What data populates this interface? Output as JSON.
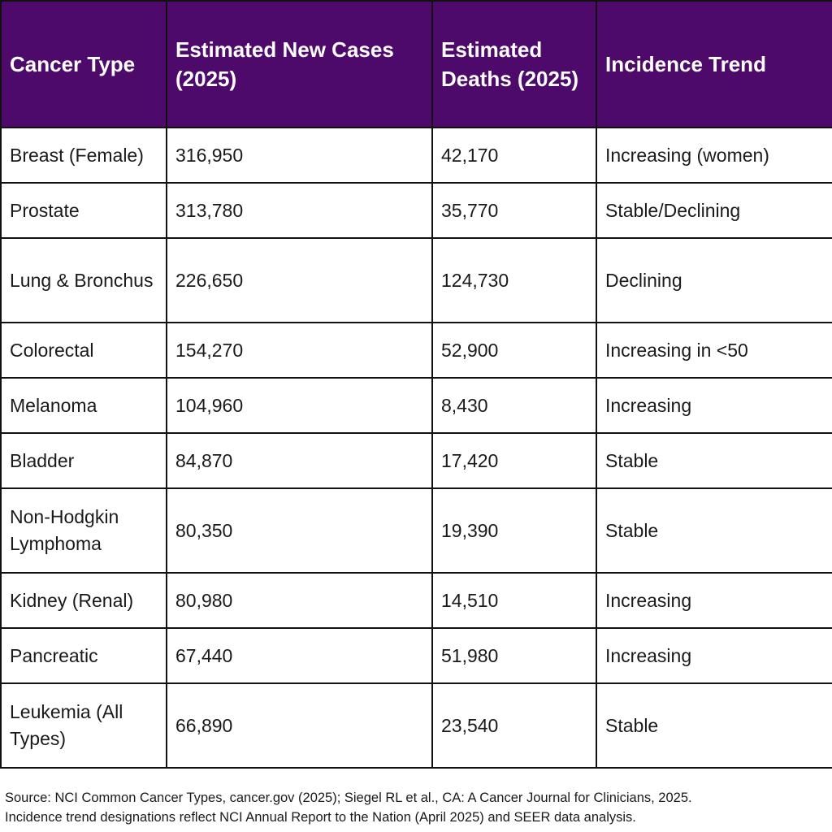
{
  "table": {
    "headers": [
      "Cancer Type",
      "Estimated New Cases (2025)",
      "Estimated Deaths (2025)",
      "Incidence Trend"
    ],
    "rows": [
      [
        "Breast (Female)",
        "316,950",
        "42,170",
        "Increasing (women)"
      ],
      [
        "Prostate",
        "313,780",
        "35,770",
        "Stable/Declining"
      ],
      [
        "Lung & Bronchus",
        "226,650",
        "124,730",
        "Declining"
      ],
      [
        "Colorectal",
        "154,270",
        "52,900",
        "Increasing in <50"
      ],
      [
        "Melanoma",
        "104,960",
        "8,430",
        "Increasing"
      ],
      [
        "Bladder",
        "84,870",
        "17,420",
        "Stable"
      ],
      [
        "Non-Hodgkin Lymphoma",
        "80,350",
        "19,390",
        "Stable"
      ],
      [
        "Kidney (Renal)",
        "80,980",
        "14,510",
        "Increasing"
      ],
      [
        "Pancreatic",
        "67,440",
        "51,980",
        "Increasing"
      ],
      [
        "Leukemia (All Types)",
        "66,890",
        "23,540",
        "Stable"
      ]
    ]
  },
  "footer": {
    "line1": "Source: NCI Common Cancer Types, cancer.gov (2025); Siegel RL et al., CA: A Cancer Journal for Clinicians, 2025.",
    "line2": "Incidence trend designations reflect NCI Annual Report to the Nation (April 2025) and SEER data analysis."
  },
  "colors": {
    "header_background": "#4d0a6b",
    "header_text": "#ffffff",
    "border": "#111111"
  }
}
